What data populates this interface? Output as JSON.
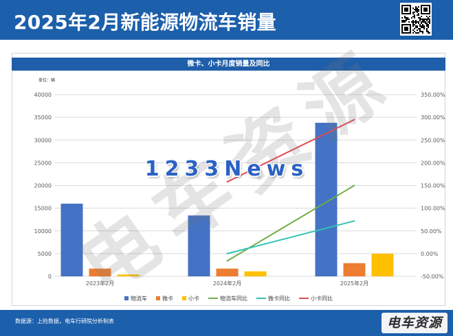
{
  "header": {
    "title": "2025年2月新能源物流车销量"
  },
  "icons": {
    "qr": "qr-code"
  },
  "colors": {
    "header_bg": "#1c5fab",
    "panel_title_bg": "#1f5ea9",
    "footer_bg": "#1c5fab"
  },
  "chart_data": {
    "type": "bar",
    "title": "微卡、小卡月度销量及同比",
    "unit_label": "单位：辆",
    "categories": [
      "2023年2月",
      "2024年2月",
      "2025年2月"
    ],
    "ylim": [
      0,
      40000
    ],
    "y2lim": [
      -50,
      350
    ],
    "y_tick_labels": [
      "0",
      "5000",
      "10000",
      "15000",
      "20000",
      "25000",
      "30000",
      "35000",
      "40000"
    ],
    "y2_tick_labels": [
      "-50.00%",
      "0.00%",
      "50.00%",
      "100.00%",
      "150.00%",
      "200.00%",
      "250.00%",
      "300.00%",
      "350.00%"
    ],
    "grid": true,
    "legend": "bottom",
    "series": [
      {
        "name": "物流车",
        "type": "bar",
        "axis": "left",
        "color": "#4472c4",
        "values": [
          16000,
          13400,
          33800
        ]
      },
      {
        "name": "微卡",
        "type": "bar",
        "axis": "left",
        "color": "#ed7d31",
        "values": [
          1700,
          1700,
          2900
        ]
      },
      {
        "name": "小卡",
        "type": "bar",
        "axis": "left",
        "color": "#ffc000",
        "values": [
          400,
          1100,
          5000
        ]
      },
      {
        "name": "物流车同比",
        "type": "line",
        "axis": "right",
        "color": "#70ad47",
        "values": [
          null,
          -16,
          150
        ]
      },
      {
        "name": "微卡同比",
        "type": "line",
        "axis": "right",
        "color": "#2ec4b4",
        "values": [
          null,
          0,
          72
        ]
      },
      {
        "name": "小卡同比",
        "type": "line",
        "axis": "right",
        "color": "#e04b55",
        "values": [
          null,
          158,
          295
        ]
      }
    ]
  },
  "footer": {
    "source": "数据源：上险数据，电车行研院分析制表",
    "logo_text": "电车资源"
  },
  "watermarks": {
    "brand": "电车资源",
    "news": "1233News"
  }
}
